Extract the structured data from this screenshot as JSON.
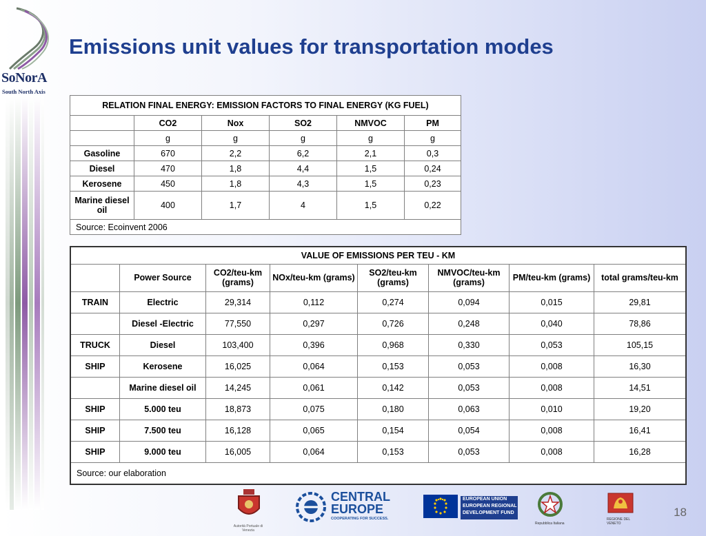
{
  "logo": {
    "name": "SoNorA",
    "tagline": "South North Axis"
  },
  "slide": {
    "title": "Emissions unit values for transportation modes",
    "page_number": "18"
  },
  "table1": {
    "title": "RELATION FINAL ENERGY: EMISSION FACTORS TO FINAL ENERGY (KG FUEL)",
    "columns": [
      "CO2",
      "Nox",
      "SO2",
      "NMVOC",
      "PM"
    ],
    "units": [
      "g",
      "g",
      "g",
      "g",
      "g"
    ],
    "rows": [
      {
        "label": "Gasoline",
        "values": [
          "670",
          "2,2",
          "6,2",
          "2,1",
          "0,3"
        ]
      },
      {
        "label": "Diesel",
        "values": [
          "470",
          "1,8",
          "4,4",
          "1,5",
          "0,24"
        ]
      },
      {
        "label": "Kerosene",
        "values": [
          "450",
          "1,8",
          "4,3",
          "1,5",
          "0,23"
        ]
      },
      {
        "label": "Marine diesel oil",
        "values": [
          "400",
          "1,7",
          "4",
          "1,5",
          "0,22"
        ]
      }
    ],
    "source": "Source: Ecoinvent 2006"
  },
  "table2": {
    "title": "VALUE OF EMISSIONS PER TEU - KM",
    "columns": [
      "Power Source",
      "CO2/teu-km (grams)",
      "NOx/teu-km (grams)",
      "SO2/teu-km (grams)",
      "NMVOC/teu-km (grams)",
      "PM/teu-km (grams)",
      "total grams/teu-km"
    ],
    "rows": [
      {
        "mode": "TRAIN",
        "source": "Electric",
        "values": [
          "29,314",
          "0,112",
          "0,274",
          "0,094",
          "0,015",
          "29,81"
        ]
      },
      {
        "mode": "",
        "source": "Diesel -Electric",
        "values": [
          "77,550",
          "0,297",
          "0,726",
          "0,248",
          "0,040",
          "78,86"
        ]
      },
      {
        "mode": "TRUCK",
        "source": "Diesel",
        "values": [
          "103,400",
          "0,396",
          "0,968",
          "0,330",
          "0,053",
          "105,15"
        ]
      },
      {
        "mode": "SHIP",
        "source": "Kerosene",
        "values": [
          "16,025",
          "0,064",
          "0,153",
          "0,053",
          "0,008",
          "16,30"
        ]
      },
      {
        "mode": "",
        "source": "Marine diesel oil",
        "values": [
          "14,245",
          "0,061",
          "0,142",
          "0,053",
          "0,008",
          "14,51"
        ]
      },
      {
        "mode": "SHIP",
        "source": "5.000 teu",
        "values": [
          "18,873",
          "0,075",
          "0,180",
          "0,063",
          "0,010",
          "19,20"
        ]
      },
      {
        "mode": "SHIP",
        "source": "7.500 teu",
        "values": [
          "16,128",
          "0,065",
          "0,154",
          "0,054",
          "0,008",
          "16,41"
        ]
      },
      {
        "mode": "SHIP",
        "source": "9.000 teu",
        "values": [
          "16,005",
          "0,064",
          "0,153",
          "0,053",
          "0,008",
          "16,28"
        ]
      }
    ],
    "source": "Source: our elaboration"
  },
  "footer": {
    "port_caption": "Autorità Portuale di Venezia",
    "central_europe_1": "CENTRAL",
    "central_europe_2": "EUROPE",
    "central_europe_tag": "COOPERATING FOR SUCCESS.",
    "eu_1": "EUROPEAN UNION",
    "eu_2": "EUROPEAN REGIONAL",
    "eu_3": "DEVELOPMENT FUND",
    "italy_caption": "Repubblica Italiana",
    "veneto_caption": "REGIONE DEL VENETO"
  },
  "colors": {
    "title": "#1f3f8f",
    "eu_blue": "#003399",
    "ce_blue": "#1b4f9c"
  }
}
